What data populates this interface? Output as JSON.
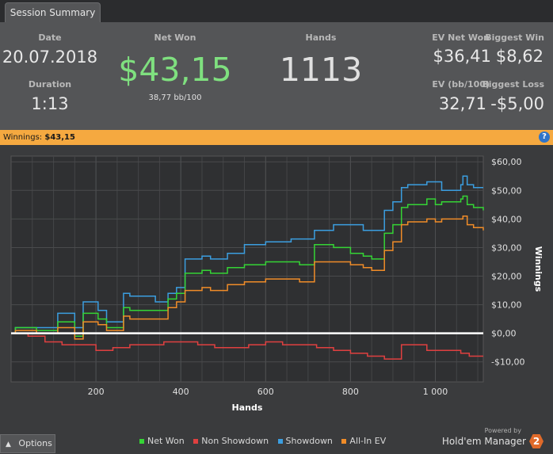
{
  "tab": {
    "label": "Session Summary"
  },
  "summary": {
    "date_label": "Date",
    "date": "20.07.2018",
    "duration_label": "Duration",
    "duration": "1:13",
    "net_won_label": "Net Won",
    "net_won": "$43,15",
    "bb100": "38,77 bb/100",
    "hands_label": "Hands",
    "hands": "1113",
    "ev_net_won_label": "EV Net Won",
    "ev_net_won": "$36,41",
    "biggest_win_label": "Biggest Win",
    "biggest_win": "$8,62",
    "ev_bb100_label": "EV (bb/100)",
    "ev_bb100": "32,71",
    "biggest_loss_label": "Biggest Loss",
    "biggest_loss": "-$5,00"
  },
  "winnings_bar": {
    "label": "Winnings:",
    "value": "$43,15"
  },
  "chart_data": {
    "type": "line",
    "xlabel": "Hands",
    "ylabel": "Winnings",
    "xlim": [
      0,
      1113
    ],
    "ylim": [
      -17,
      62
    ],
    "x_ticks": [
      200,
      400,
      600,
      800,
      1000
    ],
    "x_tick_labels": [
      "200",
      "400",
      "600",
      "800",
      "1 000"
    ],
    "y_ticks": [
      -10,
      0,
      10,
      20,
      30,
      40,
      50,
      60
    ],
    "y_tick_labels": [
      "-$10,00",
      "$0,00",
      "$10,00",
      "$20,00",
      "$30,00",
      "$40,00",
      "$50,00",
      "$60,00"
    ],
    "grid": true,
    "legend_position": "bottom",
    "colors": {
      "Net Won": "#35d435",
      "Non Showdown": "#e04040",
      "Showdown": "#3b9ee0",
      "All-In EV": "#f08c28"
    },
    "series": [
      {
        "name": "Showdown",
        "x": [
          0,
          10,
          60,
          110,
          150,
          170,
          205,
          225,
          265,
          280,
          305,
          340,
          370,
          390,
          410,
          450,
          470,
          510,
          550,
          570,
          600,
          660,
          680,
          705,
          715,
          760,
          800,
          830,
          850,
          880,
          900,
          920,
          935,
          980,
          1000,
          1015,
          1060,
          1065,
          1075,
          1090,
          1113
        ],
        "y": [
          0,
          2,
          2,
          7,
          2,
          11,
          8,
          4,
          14,
          13,
          13,
          11,
          14,
          16,
          26,
          27,
          26,
          28,
          31,
          31,
          32,
          33,
          33,
          33,
          36,
          38,
          38,
          36,
          36,
          43,
          46,
          51,
          52,
          53,
          53,
          50,
          52,
          55,
          52,
          51,
          51
        ]
      },
      {
        "name": "Net Won",
        "x": [
          0,
          10,
          60,
          110,
          150,
          170,
          205,
          225,
          265,
          280,
          305,
          340,
          370,
          390,
          410,
          450,
          470,
          510,
          550,
          570,
          600,
          660,
          680,
          705,
          715,
          760,
          800,
          830,
          850,
          880,
          900,
          920,
          935,
          980,
          1000,
          1015,
          1060,
          1065,
          1075,
          1090,
          1113
        ],
        "y": [
          0,
          2,
          1,
          4,
          -1,
          7,
          5,
          2,
          9,
          8,
          8,
          8,
          12,
          14,
          21,
          22,
          21,
          23,
          24,
          24,
          25,
          25,
          24,
          24,
          31,
          30,
          28,
          27,
          26,
          35,
          38,
          44,
          45,
          47,
          45,
          46,
          47,
          48,
          45,
          44,
          43
        ]
      },
      {
        "name": "All-In EV",
        "x": [
          0,
          10,
          60,
          110,
          150,
          170,
          205,
          225,
          265,
          280,
          305,
          340,
          370,
          390,
          410,
          450,
          470,
          510,
          550,
          570,
          600,
          660,
          680,
          705,
          715,
          760,
          800,
          830,
          850,
          880,
          900,
          920,
          935,
          980,
          1000,
          1015,
          1060,
          1065,
          1075,
          1090,
          1113
        ],
        "y": [
          0,
          1,
          0,
          2,
          -2,
          4,
          3,
          1,
          6,
          5,
          5,
          5,
          9,
          11,
          15,
          16,
          15,
          17,
          18,
          18,
          19,
          19,
          18,
          18,
          25,
          25,
          24,
          23,
          22,
          29,
          32,
          38,
          39,
          40,
          39,
          40,
          40,
          41,
          38,
          37,
          36
        ]
      },
      {
        "name": "Non Showdown",
        "x": [
          0,
          40,
          80,
          120,
          160,
          200,
          240,
          280,
          320,
          360,
          400,
          440,
          480,
          520,
          560,
          600,
          640,
          680,
          720,
          760,
          800,
          840,
          880,
          900,
          920,
          940,
          980,
          1020,
          1060,
          1080,
          1113
        ],
        "y": [
          0,
          -1,
          -3,
          -4,
          -4,
          -6,
          -5,
          -4,
          -4,
          -3,
          -3,
          -4,
          -5,
          -5,
          -4,
          -3,
          -4,
          -4,
          -5,
          -6,
          -7,
          -8,
          -9,
          -9,
          -4,
          -4,
          -6,
          -6,
          -7,
          -8,
          -8
        ]
      }
    ]
  },
  "footer": {
    "options_label": "Options",
    "legend": [
      "Net Won",
      "Non Showdown",
      "Showdown",
      "All-In EV"
    ],
    "powered_by": "Powered by",
    "brand": "Hold'em Manager",
    "brand_badge": "2"
  }
}
